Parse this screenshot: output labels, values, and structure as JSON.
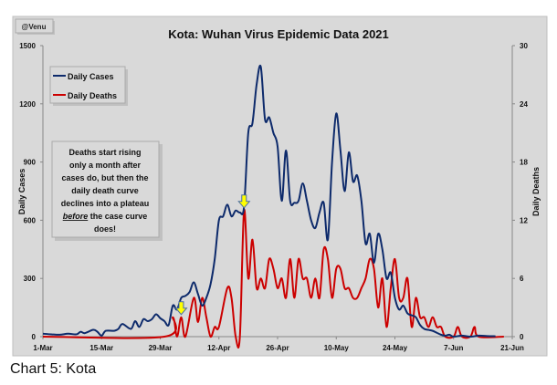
{
  "credit": "@Venu",
  "caption": "Chart 5: Kota",
  "annotation": {
    "lines": [
      "Deaths start rising",
      "only a month after",
      "cases do, but then the",
      "daily death curve",
      "declines into a plateau"
    ],
    "em": "before",
    "after_em": " the case curve",
    "last": "does!"
  },
  "colors": {
    "cases": "#0d2a6b",
    "deaths": "#cc0000",
    "background": "#d9d9d9",
    "arrow": "#ffff00"
  },
  "chart_data": {
    "type": "line",
    "title": "Kota: Wuhan Virus Epidemic Data 2021",
    "ylabel": "Daily Cases",
    "y2label": "Daily Deaths",
    "ylim": [
      0,
      1500
    ],
    "y2lim": [
      0,
      30
    ],
    "yticks": [
      "0",
      "300",
      "600",
      "900",
      "1200",
      "1500"
    ],
    "y2ticks": [
      "0",
      "6",
      "12",
      "18",
      "24",
      "30"
    ],
    "xticks": [
      "1-Mar",
      "15-Mar",
      "29-Mar",
      "12-Apr",
      "26-Apr",
      "10-May",
      "24-May",
      "7-Jun",
      "21-Jun"
    ],
    "x_unit": "days since 1-Mar",
    "xlim": [
      0,
      112
    ],
    "legend": {
      "position": "top-left",
      "entries": [
        "Daily Cases",
        "Daily Deaths"
      ]
    },
    "arrows_at_day": [
      33,
      48
    ],
    "series": [
      {
        "name": "Daily Cases",
        "axis": "left",
        "points": [
          [
            0,
            15
          ],
          [
            2,
            12
          ],
          [
            4,
            10
          ],
          [
            6,
            15
          ],
          [
            8,
            12
          ],
          [
            9,
            25
          ],
          [
            10,
            18
          ],
          [
            12,
            35
          ],
          [
            13,
            25
          ],
          [
            14,
            5
          ],
          [
            15,
            30
          ],
          [
            17,
            30
          ],
          [
            18,
            40
          ],
          [
            19,
            65
          ],
          [
            21,
            40
          ],
          [
            22,
            80
          ],
          [
            23,
            50
          ],
          [
            24,
            90
          ],
          [
            25,
            80
          ],
          [
            26,
            90
          ],
          [
            27,
            115
          ],
          [
            28,
            95
          ],
          [
            29,
            80
          ],
          [
            30,
            60
          ],
          [
            31,
            160
          ],
          [
            32,
            140
          ],
          [
            33,
            200
          ],
          [
            34,
            210
          ],
          [
            35,
            230
          ],
          [
            36,
            280
          ],
          [
            37,
            220
          ],
          [
            38,
            160
          ],
          [
            39,
            200
          ],
          [
            40,
            270
          ],
          [
            41,
            400
          ],
          [
            42,
            600
          ],
          [
            43,
            620
          ],
          [
            44,
            680
          ],
          [
            45,
            620
          ],
          [
            46,
            650
          ],
          [
            47,
            640
          ],
          [
            48,
            670
          ],
          [
            49,
            1050
          ],
          [
            50,
            1100
          ],
          [
            51,
            1300
          ],
          [
            52,
            1390
          ],
          [
            53,
            1120
          ],
          [
            54,
            1130
          ],
          [
            55,
            1050
          ],
          [
            56,
            980
          ],
          [
            57,
            700
          ],
          [
            58,
            960
          ],
          [
            59,
            700
          ],
          [
            60,
            690
          ],
          [
            61,
            700
          ],
          [
            62,
            790
          ],
          [
            63,
            700
          ],
          [
            64,
            600
          ],
          [
            65,
            560
          ],
          [
            66,
            640
          ],
          [
            67,
            690
          ],
          [
            68,
            500
          ],
          [
            69,
            900
          ],
          [
            70,
            1150
          ],
          [
            71,
            960
          ],
          [
            72,
            750
          ],
          [
            73,
            950
          ],
          [
            74,
            800
          ],
          [
            75,
            830
          ],
          [
            76,
            700
          ],
          [
            77,
            480
          ],
          [
            78,
            530
          ],
          [
            79,
            380
          ],
          [
            80,
            530
          ],
          [
            81,
            450
          ],
          [
            82,
            300
          ],
          [
            83,
            330
          ],
          [
            84,
            200
          ],
          [
            85,
            140
          ],
          [
            86,
            160
          ],
          [
            87,
            120
          ],
          [
            88,
            110
          ],
          [
            89,
            100
          ],
          [
            90,
            60
          ],
          [
            91,
            40
          ],
          [
            92,
            35
          ],
          [
            93,
            30
          ],
          [
            94,
            20
          ],
          [
            95,
            10
          ],
          [
            96,
            5
          ],
          [
            97,
            10
          ],
          [
            98,
            0
          ],
          [
            100,
            5
          ],
          [
            102,
            0
          ],
          [
            104,
            5
          ],
          [
            106,
            3
          ],
          [
            108,
            2
          ]
        ]
      },
      {
        "name": "Daily Deaths",
        "axis": "right",
        "points": [
          [
            0,
            0
          ],
          [
            29,
            0
          ],
          [
            31,
            2
          ],
          [
            32,
            0
          ],
          [
            33,
            2
          ],
          [
            34,
            0
          ],
          [
            36,
            4
          ],
          [
            37,
            1.5
          ],
          [
            38,
            4
          ],
          [
            39,
            2
          ],
          [
            40,
            0
          ],
          [
            41,
            1
          ],
          [
            42,
            1
          ],
          [
            44,
            5
          ],
          [
            45,
            4
          ],
          [
            46,
            0
          ],
          [
            47,
            0
          ],
          [
            48,
            13
          ],
          [
            49,
            6
          ],
          [
            50,
            10
          ],
          [
            51,
            5
          ],
          [
            52,
            6
          ],
          [
            53,
            5
          ],
          [
            54,
            8
          ],
          [
            55,
            7
          ],
          [
            56,
            5
          ],
          [
            57,
            6
          ],
          [
            58,
            4
          ],
          [
            59,
            8
          ],
          [
            60,
            4
          ],
          [
            61,
            8
          ],
          [
            62,
            6
          ],
          [
            63,
            6
          ],
          [
            64,
            4
          ],
          [
            65,
            6
          ],
          [
            66,
            4
          ],
          [
            67,
            9
          ],
          [
            68,
            8
          ],
          [
            69,
            4
          ],
          [
            70,
            7
          ],
          [
            71,
            7
          ],
          [
            72,
            5
          ],
          [
            73,
            5
          ],
          [
            74,
            4
          ],
          [
            75,
            4
          ],
          [
            76,
            5
          ],
          [
            77,
            6
          ],
          [
            78,
            8
          ],
          [
            79,
            7
          ],
          [
            80,
            3
          ],
          [
            81,
            6
          ],
          [
            82,
            1
          ],
          [
            83,
            5
          ],
          [
            84,
            8
          ],
          [
            85,
            4
          ],
          [
            86,
            4
          ],
          [
            87,
            6
          ],
          [
            88,
            1
          ],
          [
            89,
            4
          ],
          [
            90,
            2
          ],
          [
            91,
            2
          ],
          [
            92,
            1
          ],
          [
            93,
            2
          ],
          [
            94,
            1
          ],
          [
            95,
            1
          ],
          [
            96,
            0
          ],
          [
            98,
            0
          ],
          [
            99,
            1
          ],
          [
            100,
            0
          ],
          [
            102,
            0
          ],
          [
            103,
            1
          ],
          [
            104,
            0
          ],
          [
            110,
            0
          ]
        ]
      }
    ]
  }
}
